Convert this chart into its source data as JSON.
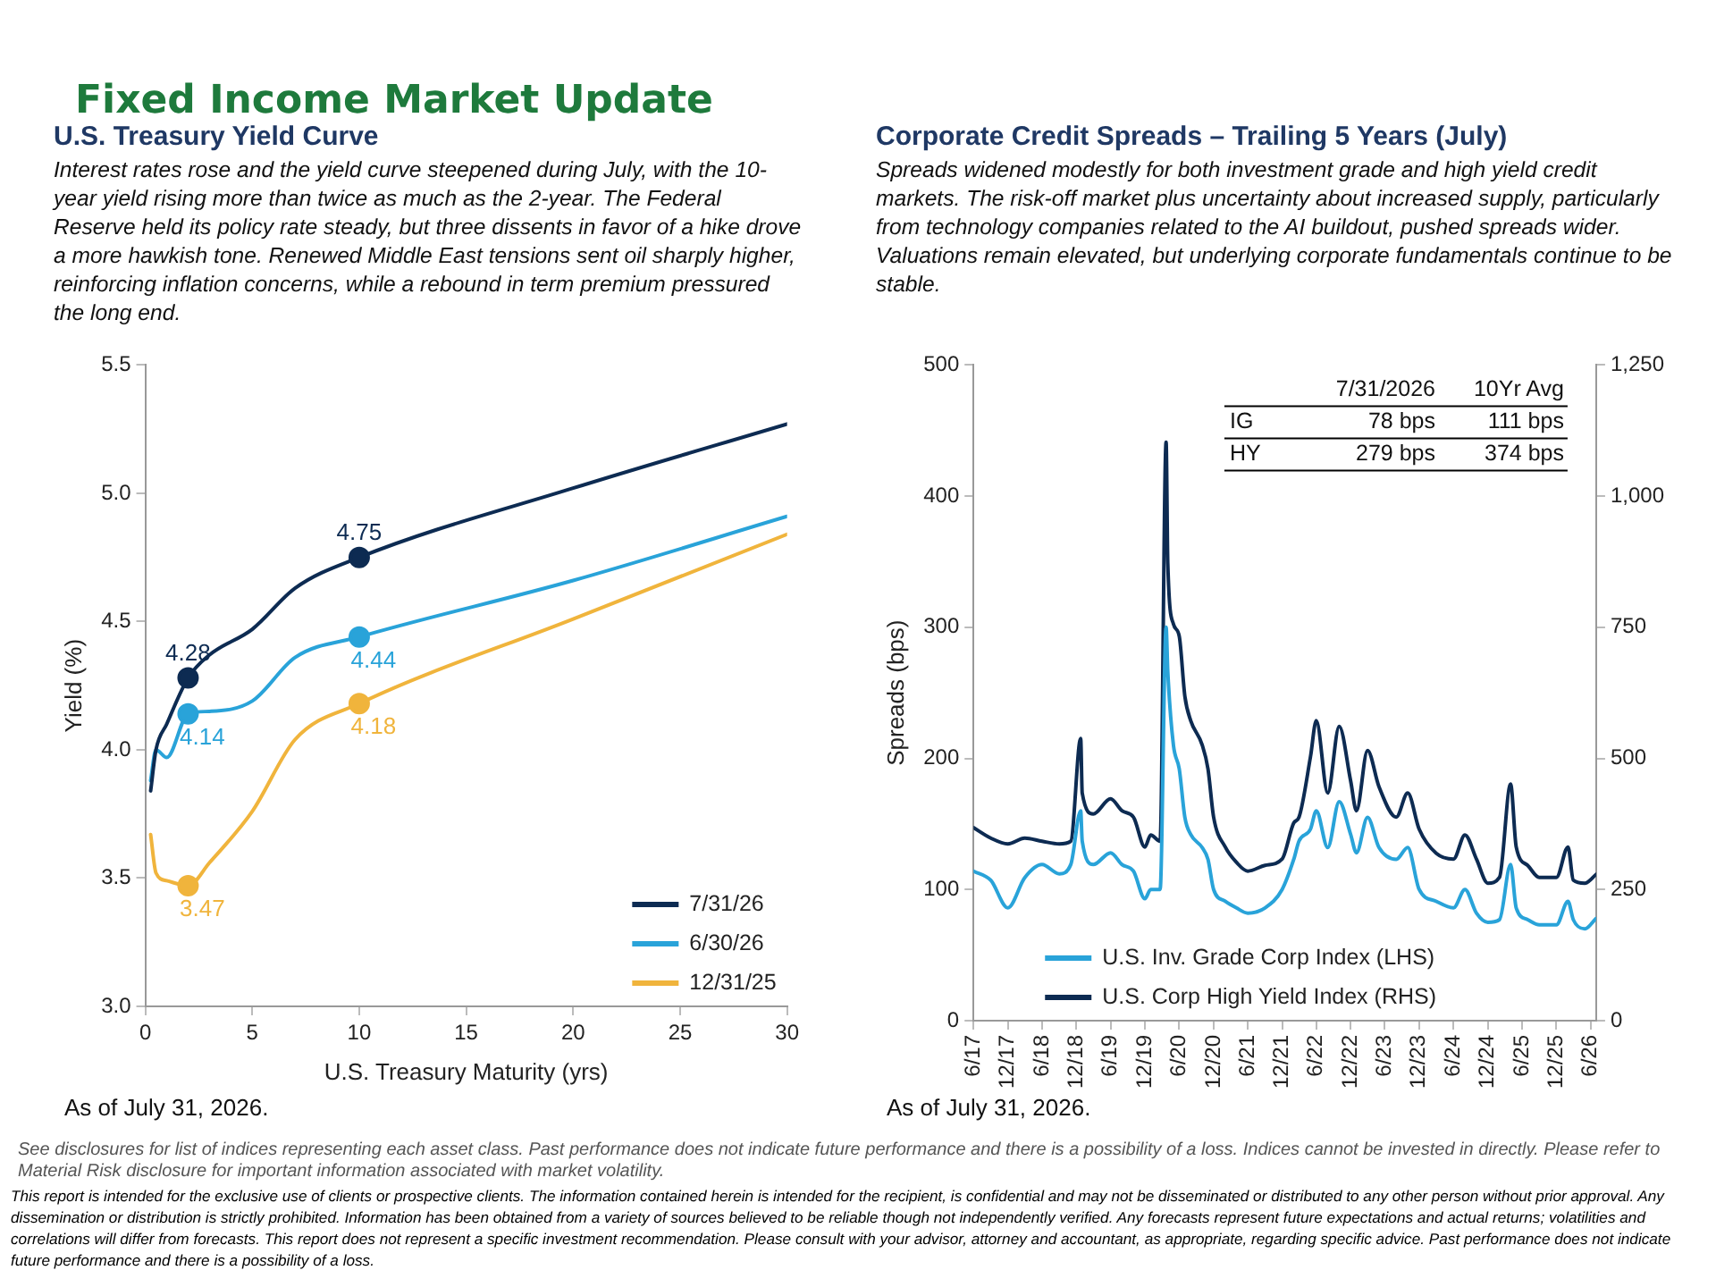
{
  "chart_data": [
    {
      "type": "other",
      "title": "Fixed Income Market Update",
      "annotations": [
        "See disclosures for list of indices representing each asset class. Past performance does not indicate future performance and there is a possibility of a loss. Indices cannot be invested in directly. Please refer to Material Risk disclosure for important information associated with market volatility.",
        "This report is intended for the exclusive use of clients or prospective clients. The information contained herein is intended for the recipient, is confidential and may not be disseminated or distributed to any other person without prior approval. Any dissemination or distribution is strictly prohibited. Information has been obtained from a variety of sources believed to be reliable though not independently verified. Any forecasts represent future expectations and actual returns; volatilities and correlations will differ from forecasts. This report does not represent a specific investment recommendation. Please consult with your advisor, attorney and accountant, as appropriate, regarding specific advice. Past performance does not indicate future performance and there is a possibility of a loss."
      ]
    },
    {
      "type": "line",
      "title": "U.S. Treasury Yield Curve",
      "subtitle": "Interest rates rose and the yield curve steepened during July, with the 10-year yield rising more than twice as much as the 2-year. The Federal Reserve held its policy rate steady, but three dissents in favor of a hike drove a more hawkish tone. Renewed Middle East tensions sent oil sharply higher, reinforcing inflation concerns, while a rebound in term premium pressured the long end.",
      "xlabel": "U.S. Treasury Maturity (yrs)",
      "ylabel": "Yield (%)",
      "x": [
        0.25,
        0.5,
        1,
        2,
        3,
        5,
        7,
        10,
        20,
        30
      ],
      "series": [
        {
          "name": "7/31/26",
          "color": "#0d2b52",
          "values": [
            3.84,
            4.0,
            4.1,
            4.28,
            4.37,
            4.47,
            4.63,
            4.75,
            5.02,
            5.27
          ],
          "value_labels": [
            null,
            null,
            null,
            "4.28",
            null,
            null,
            null,
            "4.75",
            null,
            null
          ]
        },
        {
          "name": "6/30/26",
          "color": "#29a3d9",
          "values": [
            3.88,
            4.0,
            3.97,
            4.14,
            4.15,
            4.19,
            4.36,
            4.44,
            4.66,
            4.91
          ],
          "value_labels": [
            null,
            null,
            null,
            "4.14",
            null,
            null,
            null,
            "4.44",
            null,
            null
          ]
        },
        {
          "name": "12/31/25",
          "color": "#f0b43c",
          "values": [
            3.67,
            3.52,
            3.49,
            3.47,
            3.56,
            3.76,
            4.04,
            4.18,
            4.51,
            4.84
          ],
          "value_labels": [
            null,
            null,
            null,
            "3.47",
            null,
            null,
            null,
            "4.18",
            null,
            null
          ]
        }
      ],
      "xlim": [
        0,
        30
      ],
      "xticks": [
        0,
        5,
        10,
        15,
        20,
        25,
        30
      ],
      "ylim": [
        3,
        5.5
      ],
      "yticks": [
        {
          "value": 3,
          "label": "3.0"
        },
        {
          "value": 3.5,
          "label": "3.5"
        },
        {
          "value": 4,
          "label": "4.0"
        },
        {
          "value": 4.5,
          "label": "4.5"
        },
        {
          "value": 5,
          "label": "5.0"
        },
        {
          "value": 5.5,
          "label": "5.5"
        }
      ],
      "grid": false,
      "legend": "bottom right",
      "line_style": "solid",
      "annotations": [
        "As of July 31, 2026."
      ]
    },
    {
      "type": "line",
      "title": "Corporate Credit Spreads – Trailing 5 Years (July)",
      "subtitle": "Spreads widened modestly for both investment grade and high yield credit markets. The risk-off market plus uncertainty about increased supply, particularly from technology companies related to the AI buildout, pushed spreads wider. Valuations remain elevated, but underlying corporate fundamentals continue to be stable.",
      "ylabel": "Spreads (bps)",
      "x": [
        "2017-06",
        "2017-09",
        "2017-12",
        "2018-03",
        "2018-06",
        "2018-09",
        "2018-11",
        "2018-12-24",
        "2019-01",
        "2019-03",
        "2019-06",
        "2019-08",
        "2019-10",
        "2019-12",
        "2020-01",
        "2020-02-20",
        "2020-03-23",
        "2020-04",
        "2020-05",
        "2020-06",
        "2020-07",
        "2020-08",
        "2020-10",
        "2020-11",
        "2020-12",
        "2021-02",
        "2021-04",
        "2021-06",
        "2021-09",
        "2021-12",
        "2022-02",
        "2022-03",
        "2022-05",
        "2022-06",
        "2022-08",
        "2022-10",
        "2022-12",
        "2023-01",
        "2023-03",
        "2023-05",
        "2023-08",
        "2023-10",
        "2023-12",
        "2024-03",
        "2024-06",
        "2024-08",
        "2024-10",
        "2024-12",
        "2025-02",
        "2025-04",
        "2025-05",
        "2025-07",
        "2025-09",
        "2025-12",
        "2026-02",
        "2026-03",
        "2026-05",
        "2026-07"
      ],
      "series": [
        {
          "name": "U.S. Inv. Grade Corp Index (LHS)",
          "color": "#29a3d9",
          "values": [
            114,
            107,
            86,
            109,
            119,
            112,
            119,
            160,
            137,
            119,
            128,
            119,
            114,
            93,
            100,
            100,
            300,
            266,
            210,
            192,
            155,
            142,
            132,
            123,
            100,
            91,
            86,
            82,
            86,
            100,
            123,
            137,
            146,
            160,
            132,
            167,
            142,
            128,
            155,
            132,
            123,
            132,
            100,
            91,
            86,
            100,
            82,
            75,
            77,
            119,
            86,
            77,
            73,
            73,
            91,
            77,
            70,
            78
          ]
        },
        {
          "name": "U.S. Corp High Yield Index (RHS)",
          "color": "#0d2b52",
          "axis": "y2",
          "values": [
            368,
            348,
            337,
            348,
            342,
            337,
            342,
            538,
            434,
            394,
            423,
            400,
            388,
            331,
            354,
            342,
            1103,
            871,
            756,
            733,
            618,
            572,
            526,
            480,
            388,
            331,
            302,
            285,
            296,
            308,
            377,
            388,
            503,
            572,
            434,
            561,
            457,
            400,
            515,
            446,
            388,
            434,
            365,
            319,
            308,
            354,
            308,
            262,
            273,
            451,
            331,
            296,
            273,
            273,
            331,
            268,
            262,
            279
          ]
        }
      ],
      "xlim": [
        "2017-06",
        "2026-07"
      ],
      "xticks": [
        {
          "value": "2017-06",
          "label": "6/17"
        },
        {
          "value": "2017-12",
          "label": "12/17"
        },
        {
          "value": "2018-06",
          "label": "6/18"
        },
        {
          "value": "2018-12",
          "label": "12/18"
        },
        {
          "value": "2019-06",
          "label": "6/19"
        },
        {
          "value": "2019-12",
          "label": "12/19"
        },
        {
          "value": "2020-06",
          "label": "6/20"
        },
        {
          "value": "2020-12",
          "label": "12/20"
        },
        {
          "value": "2021-06",
          "label": "6/21"
        },
        {
          "value": "2021-12",
          "label": "12/21"
        },
        {
          "value": "2022-06",
          "label": "6/22"
        },
        {
          "value": "2022-12",
          "label": "12/22"
        },
        {
          "value": "2023-06",
          "label": "6/23"
        },
        {
          "value": "2023-12",
          "label": "12/23"
        },
        {
          "value": "2024-06",
          "label": "6/24"
        },
        {
          "value": "2024-12",
          "label": "12/24"
        },
        {
          "value": "2025-06",
          "label": "6/25"
        },
        {
          "value": "2025-12",
          "label": "12/25"
        },
        {
          "value": "2026-06",
          "label": "6/26"
        }
      ],
      "ylim": [
        0,
        500
      ],
      "yticks": [
        0,
        100,
        200,
        300,
        400,
        500
      ],
      "y2lim": [
        0,
        1250
      ],
      "y2ticks": [
        0,
        250,
        500,
        750,
        {
          "value": 1000,
          "label": "1,000"
        },
        {
          "value": 1250,
          "label": "1,250"
        }
      ],
      "grid": false,
      "legend": "bottom left",
      "line_style": "solid",
      "annotations": [
        "7/31/2026",
        "10Yr Avg",
        "IG",
        "78 bps",
        "111 bps",
        "HY",
        "279 bps",
        "374 bps",
        "As of July 31, 2026."
      ]
    }
  ]
}
